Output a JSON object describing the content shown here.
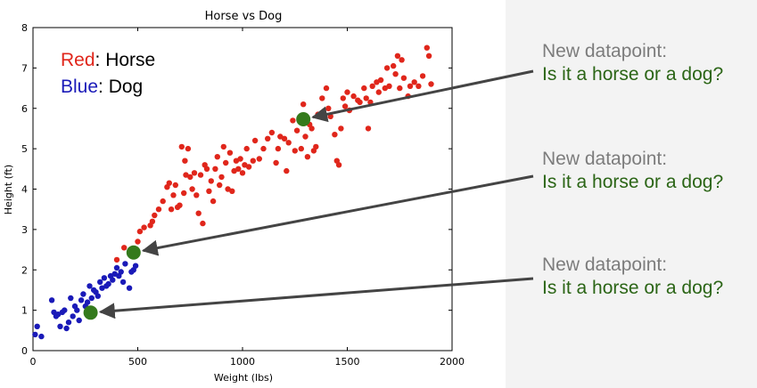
{
  "chart_data": {
    "type": "scatter",
    "title": "Horse vs Dog",
    "xlabel": "Weight (lbs)",
    "ylabel": "Height (ft)",
    "xlim": [
      0,
      2000
    ],
    "ylim": [
      0,
      8
    ],
    "xticks": [
      "0",
      "500",
      "1000",
      "1500",
      "2000"
    ],
    "yticks": [
      "0",
      "1",
      "2",
      "3",
      "4",
      "5",
      "6",
      "7",
      "8"
    ],
    "legend": [
      {
        "color_word": "Red",
        "label": ": Horse",
        "color": "#e0261b"
      },
      {
        "color_word": "Blue",
        "label": ": Dog",
        "color": "#1a1ab8"
      }
    ],
    "series": [
      {
        "key": "horse",
        "color": "#e0261b",
        "points": [
          [
            400,
            2.25
          ],
          [
            435,
            2.55
          ],
          [
            470,
            2.4
          ],
          [
            500,
            2.7
          ],
          [
            510,
            2.95
          ],
          [
            530,
            3.05
          ],
          [
            560,
            3.1
          ],
          [
            570,
            3.2
          ],
          [
            580,
            3.35
          ],
          [
            600,
            3.5
          ],
          [
            620,
            3.7
          ],
          [
            640,
            4.05
          ],
          [
            650,
            4.15
          ],
          [
            660,
            3.5
          ],
          [
            670,
            3.85
          ],
          [
            680,
            4.1
          ],
          [
            690,
            3.55
          ],
          [
            700,
            3.6
          ],
          [
            710,
            5.05
          ],
          [
            720,
            3.9
          ],
          [
            725,
            4.7
          ],
          [
            730,
            4.35
          ],
          [
            740,
            5.0
          ],
          [
            750,
            4.3
          ],
          [
            760,
            4.0
          ],
          [
            770,
            4.4
          ],
          [
            780,
            3.85
          ],
          [
            790,
            3.4
          ],
          [
            800,
            4.35
          ],
          [
            810,
            3.15
          ],
          [
            820,
            4.6
          ],
          [
            830,
            4.5
          ],
          [
            840,
            3.95
          ],
          [
            850,
            4.2
          ],
          [
            860,
            3.7
          ],
          [
            870,
            4.5
          ],
          [
            880,
            4.8
          ],
          [
            890,
            4.1
          ],
          [
            900,
            4.3
          ],
          [
            910,
            5.05
          ],
          [
            920,
            4.65
          ],
          [
            930,
            4.0
          ],
          [
            940,
            4.9
          ],
          [
            950,
            3.95
          ],
          [
            960,
            4.45
          ],
          [
            970,
            4.7
          ],
          [
            980,
            4.5
          ],
          [
            990,
            4.75
          ],
          [
            1000,
            4.4
          ],
          [
            1010,
            4.6
          ],
          [
            1020,
            5.0
          ],
          [
            1030,
            4.55
          ],
          [
            1050,
            4.7
          ],
          [
            1060,
            5.2
          ],
          [
            1080,
            4.75
          ],
          [
            1100,
            5.0
          ],
          [
            1120,
            5.25
          ],
          [
            1140,
            5.4
          ],
          [
            1160,
            4.65
          ],
          [
            1170,
            5.0
          ],
          [
            1180,
            5.3
          ],
          [
            1200,
            5.25
          ],
          [
            1210,
            4.45
          ],
          [
            1220,
            5.15
          ],
          [
            1240,
            5.7
          ],
          [
            1250,
            4.95
          ],
          [
            1260,
            5.45
          ],
          [
            1280,
            5.0
          ],
          [
            1290,
            6.1
          ],
          [
            1300,
            5.3
          ],
          [
            1310,
            4.8
          ],
          [
            1320,
            5.6
          ],
          [
            1330,
            5.5
          ],
          [
            1340,
            4.95
          ],
          [
            1350,
            5.05
          ],
          [
            1360,
            5.85
          ],
          [
            1380,
            6.25
          ],
          [
            1400,
            6.5
          ],
          [
            1410,
            6.0
          ],
          [
            1420,
            5.8
          ],
          [
            1440,
            5.35
          ],
          [
            1450,
            4.7
          ],
          [
            1460,
            4.6
          ],
          [
            1470,
            5.5
          ],
          [
            1480,
            6.25
          ],
          [
            1490,
            6.05
          ],
          [
            1500,
            6.4
          ],
          [
            1510,
            5.95
          ],
          [
            1530,
            6.3
          ],
          [
            1550,
            6.2
          ],
          [
            1560,
            6.15
          ],
          [
            1580,
            6.5
          ],
          [
            1590,
            6.25
          ],
          [
            1600,
            5.5
          ],
          [
            1610,
            6.15
          ],
          [
            1620,
            6.55
          ],
          [
            1640,
            6.65
          ],
          [
            1650,
            6.4
          ],
          [
            1660,
            6.7
          ],
          [
            1680,
            6.5
          ],
          [
            1690,
            7.0
          ],
          [
            1700,
            6.55
          ],
          [
            1720,
            7.05
          ],
          [
            1730,
            6.85
          ],
          [
            1740,
            7.3
          ],
          [
            1750,
            6.5
          ],
          [
            1760,
            7.2
          ],
          [
            1770,
            6.75
          ],
          [
            1790,
            6.3
          ],
          [
            1800,
            6.55
          ],
          [
            1820,
            6.65
          ],
          [
            1840,
            6.55
          ],
          [
            1860,
            6.8
          ],
          [
            1880,
            7.5
          ],
          [
            1890,
            7.3
          ],
          [
            1900,
            6.6
          ]
        ]
      },
      {
        "key": "dog",
        "color": "#1a1ab8",
        "points": [
          [
            10,
            0.4
          ],
          [
            20,
            0.6
          ],
          [
            40,
            0.35
          ],
          [
            90,
            1.25
          ],
          [
            100,
            0.95
          ],
          [
            110,
            0.85
          ],
          [
            120,
            0.9
          ],
          [
            130,
            0.6
          ],
          [
            140,
            0.95
          ],
          [
            150,
            1.0
          ],
          [
            160,
            0.55
          ],
          [
            170,
            0.7
          ],
          [
            180,
            1.3
          ],
          [
            190,
            0.85
          ],
          [
            200,
            1.1
          ],
          [
            210,
            1.0
          ],
          [
            220,
            0.75
          ],
          [
            230,
            1.25
          ],
          [
            240,
            1.4
          ],
          [
            250,
            1.1
          ],
          [
            260,
            1.2
          ],
          [
            270,
            1.6
          ],
          [
            280,
            1.3
          ],
          [
            290,
            1.5
          ],
          [
            300,
            1.45
          ],
          [
            310,
            1.35
          ],
          [
            320,
            1.7
          ],
          [
            330,
            1.55
          ],
          [
            340,
            1.8
          ],
          [
            350,
            1.6
          ],
          [
            360,
            1.65
          ],
          [
            370,
            1.85
          ],
          [
            380,
            1.75
          ],
          [
            390,
            1.9
          ],
          [
            400,
            2.05
          ],
          [
            410,
            1.85
          ],
          [
            420,
            1.95
          ],
          [
            430,
            1.7
          ],
          [
            440,
            2.15
          ],
          [
            460,
            1.55
          ],
          [
            470,
            1.95
          ],
          [
            480,
            2.0
          ],
          [
            490,
            2.1
          ]
        ]
      },
      {
        "key": "new",
        "color": "#347a1c",
        "points": [
          [
            1290,
            5.73
          ],
          [
            480,
            2.43
          ],
          [
            275,
            0.94
          ]
        ]
      }
    ]
  },
  "callouts": [
    {
      "line1": "New datapoint:",
      "line2": "Is it a horse or a dog?"
    },
    {
      "line1": "New datapoint:",
      "line2": "Is it a horse or a dog?"
    },
    {
      "line1": "New datapoint:",
      "line2": "Is it a horse or a dog?"
    }
  ]
}
